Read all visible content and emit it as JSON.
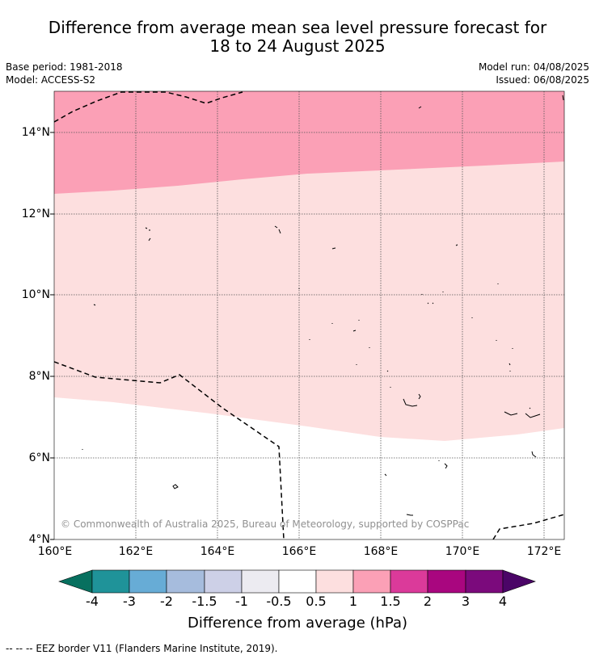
{
  "title": {
    "line1": "Difference from average mean sea level pressure forecast for",
    "line2": "18 to 24 August 2025"
  },
  "meta_left": {
    "base_period": "Base period: 1981-2018",
    "model": "Model: ACCESS-S2"
  },
  "meta_right": {
    "model_run": "Model run: 04/08/2025",
    "issued": "Issued: 06/08/2025"
  },
  "map": {
    "lat_labels": [
      "14°N",
      "12°N",
      "10°N",
      "8°N",
      "6°N",
      "4°N"
    ],
    "lon_labels": [
      "160°E",
      "162°E",
      "164°E",
      "166°E",
      "168°E",
      "170°E",
      "172°E"
    ],
    "copyright": "© Commonwealth of Australia 2025, Bureau of Meteorology, supported by COSPPac",
    "extent": {
      "lon_min": 160,
      "lon_max": 172.5,
      "lat_min": 4,
      "lat_max": 15
    },
    "fill_colors": {
      "band_1_to_1_5": "#fba0b6",
      "band_0_5_to_1": "#fddfdf",
      "band_neg_0_5_to_0_5": "#ffffff"
    }
  },
  "colorbar": {
    "tick_labels": [
      "-4",
      "-3",
      "-2",
      "-1.5",
      "-1",
      "-0.5",
      "0.5",
      "1",
      "1.5",
      "2",
      "3",
      "4"
    ],
    "colors": [
      "#07705f",
      "#1f9399",
      "#67acd6",
      "#a6bcdd",
      "#cdd0e7",
      "#ecebf1",
      "#ffffff",
      "#fddfdf",
      "#fba0b6",
      "#db3a9a",
      "#a9067f",
      "#7b0a7c",
      "#4b0567"
    ],
    "label": "Difference from average (hPa)"
  },
  "footer": "--  --  -- EEZ border V11 (Flanders Marine Institute, 2019)."
}
